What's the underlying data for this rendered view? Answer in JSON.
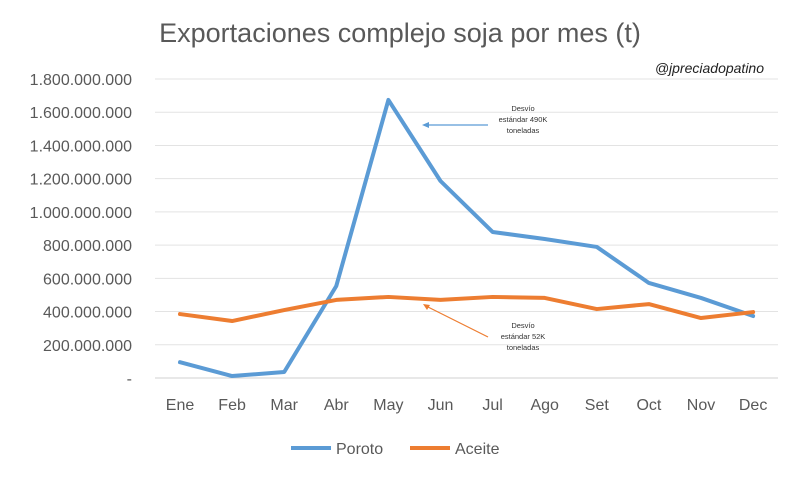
{
  "chart_data": {
    "type": "line",
    "title": "Exportaciones complejo soja por mes (t)",
    "watermark": "@jpreciadopatino",
    "xlabel": "",
    "ylabel": "",
    "categories": [
      "Ene",
      "Feb",
      "Mar",
      "Abr",
      "May",
      "Jun",
      "Jul",
      "Ago",
      "Set",
      "Oct",
      "Nov",
      "Dec"
    ],
    "ylim": [
      0,
      1800000000
    ],
    "yticks": [
      0,
      200000000,
      400000000,
      600000000,
      800000000,
      1000000000,
      1200000000,
      1400000000,
      1600000000,
      1800000000
    ],
    "ytick_labels": [
      "-",
      "200.000.000",
      "400.000.000",
      "600.000.000",
      "800.000.000",
      "1.000.000.000",
      "1.200.000.000",
      "1.400.000.000",
      "1.600.000.000",
      "1.800.000.000"
    ],
    "grid": true,
    "legend_position": "bottom",
    "series": [
      {
        "name": "Poroto",
        "color": "#5B9BD5",
        "values": [
          95000000,
          12000000,
          36000000,
          554000000,
          1674000000,
          1186000000,
          879000000,
          837000000,
          789000000,
          572000000,
          482000000,
          373000000
        ]
      },
      {
        "name": "Aceite",
        "color": "#ED7D31",
        "values": [
          385000000,
          343000000,
          409000000,
          470000000,
          488000000,
          470000000,
          488000000,
          482000000,
          415000000,
          445000000,
          361000000,
          397000000
        ]
      }
    ],
    "annotations": [
      {
        "lines": [
          "Desvío",
          "estándar 490K",
          "toneladas"
        ],
        "series": "Poroto"
      },
      {
        "lines": [
          "Desvío",
          "estándar 52K",
          "toneladas"
        ],
        "series": "Aceite"
      }
    ]
  }
}
